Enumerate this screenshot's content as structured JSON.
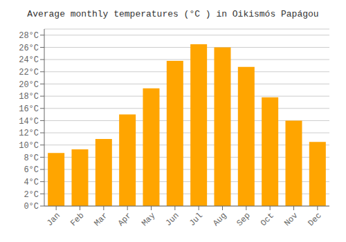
{
  "chart_data": {
    "type": "bar",
    "title": "Average monthly temperatures (°C ) in Oikismós Papágou",
    "categories": [
      "Jan",
      "Feb",
      "Mar",
      "Apr",
      "May",
      "Jun",
      "Jul",
      "Aug",
      "Sep",
      "Oct",
      "Nov",
      "Dec"
    ],
    "values": [
      8.7,
      9.3,
      11.0,
      15.0,
      19.3,
      23.8,
      26.5,
      26.0,
      22.8,
      17.8,
      14.0,
      10.5
    ],
    "color": "#FFA500",
    "ylim": [
      0,
      29
    ],
    "yticks": [
      {
        "value": 0,
        "label": "0°C"
      },
      {
        "value": 2,
        "label": "2°C"
      },
      {
        "value": 4,
        "label": "4°C"
      },
      {
        "value": 6,
        "label": "6°C"
      },
      {
        "value": 8,
        "label": "8°C"
      },
      {
        "value": 10,
        "label": "10°C"
      },
      {
        "value": 12,
        "label": "12°C"
      },
      {
        "value": 14,
        "label": "14°C"
      },
      {
        "value": 16,
        "label": "16°C"
      },
      {
        "value": 18,
        "label": "18°C"
      },
      {
        "value": 20,
        "label": "20°C"
      },
      {
        "value": 22,
        "label": "22°C"
      },
      {
        "value": 24,
        "label": "24°C"
      },
      {
        "value": 26,
        "label": "26°C"
      },
      {
        "value": 28,
        "label": "28°C"
      }
    ],
    "grid": true
  }
}
